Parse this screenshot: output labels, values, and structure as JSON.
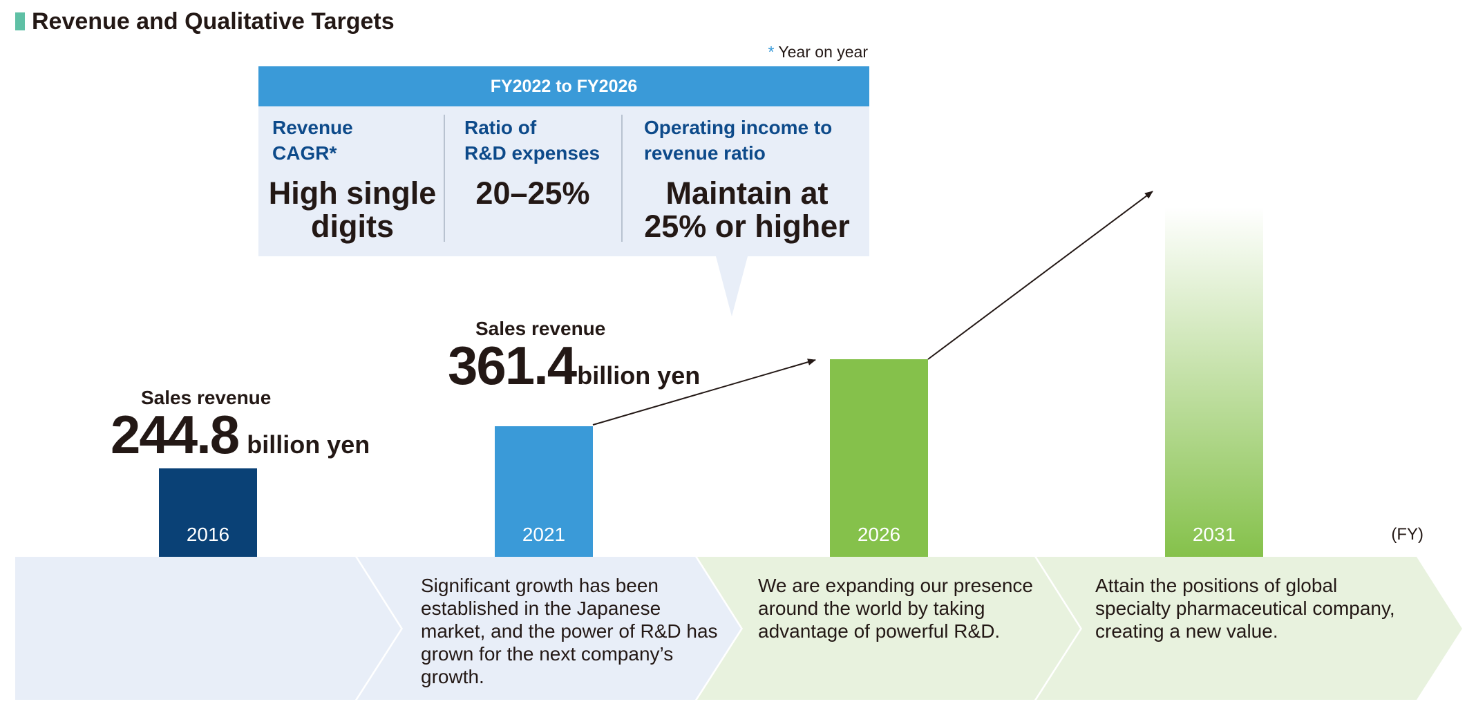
{
  "page_title": "Revenue and Qualitative Targets",
  "footnote": {
    "star": "*",
    "text": " Year on year"
  },
  "targets": {
    "period": "FY2022 to FY2026",
    "items": [
      {
        "label_line1": "Revenue",
        "label_line2": "CAGR*",
        "value_line1": "High single",
        "value_line2": "digits"
      },
      {
        "label_line1": "Ratio of",
        "label_line2": "R&D expenses",
        "value_line1": "20–25%",
        "value_line2": ""
      },
      {
        "label_line1": "Operating income to",
        "label_line2": "revenue ratio",
        "value_line1": "Maintain at",
        "value_line2": "25% or higher"
      }
    ]
  },
  "axis_unit": "(FY)",
  "chart_data": {
    "type": "bar",
    "categories": [
      "2016",
      "2021",
      "2026",
      "2031"
    ],
    "values": [
      244.8,
      361.4,
      null,
      null
    ],
    "annotations": [
      {
        "year": "2016",
        "label": "Sales revenue",
        "value": "244.8",
        "unit": "billion yen"
      },
      {
        "year": "2021",
        "label": "Sales revenue",
        "value": "361.4",
        "unit": "billion yen"
      }
    ],
    "colors": [
      "#0a4176",
      "#3a9ad8",
      "#85c14b",
      "#85c14b"
    ],
    "xlabel": "(FY)"
  },
  "stages": [
    {
      "text": ""
    },
    {
      "text": "Significant growth has been established in the Japanese market, and the power of R&D has grown for the next company’s growth."
    },
    {
      "text": "We are expanding our presence around the world by taking advantage of powerful R&D."
    },
    {
      "text": "Attain the positions of global specialty pharmaceutical company, creating a new value."
    }
  ],
  "colors": {
    "accent": "#3a9ad8",
    "navy": "#0a4176",
    "green": "#85c14b",
    "teal_mark": "#5fc0a5",
    "label_blue": "#0d4a8a"
  }
}
